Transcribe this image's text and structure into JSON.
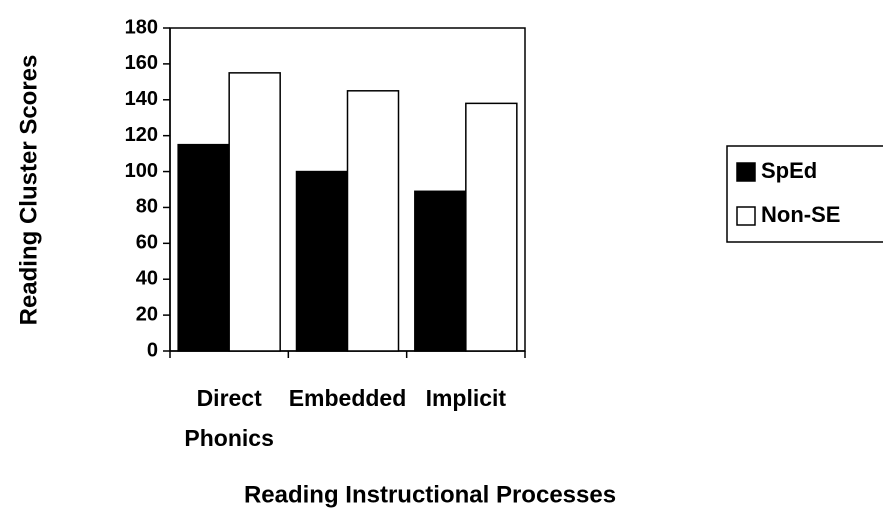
{
  "chart_data": {
    "type": "bar",
    "x_label": "Reading Instructional Processes",
    "y_label": "Reading Cluster Scores",
    "categories": [
      "Direct Phonics",
      "Embedded",
      "Implicit"
    ],
    "series": [
      {
        "name": "SpEd",
        "color": "#000000",
        "values": [
          115,
          100,
          89
        ]
      },
      {
        "name": "Non-SE",
        "color": "#ffffff",
        "values": [
          155,
          145,
          138
        ]
      }
    ],
    "ylim": [
      0,
      180
    ],
    "yticks": [
      0,
      20,
      40,
      60,
      80,
      100,
      120,
      140,
      160,
      180
    ],
    "grid": false,
    "legend": "right"
  }
}
